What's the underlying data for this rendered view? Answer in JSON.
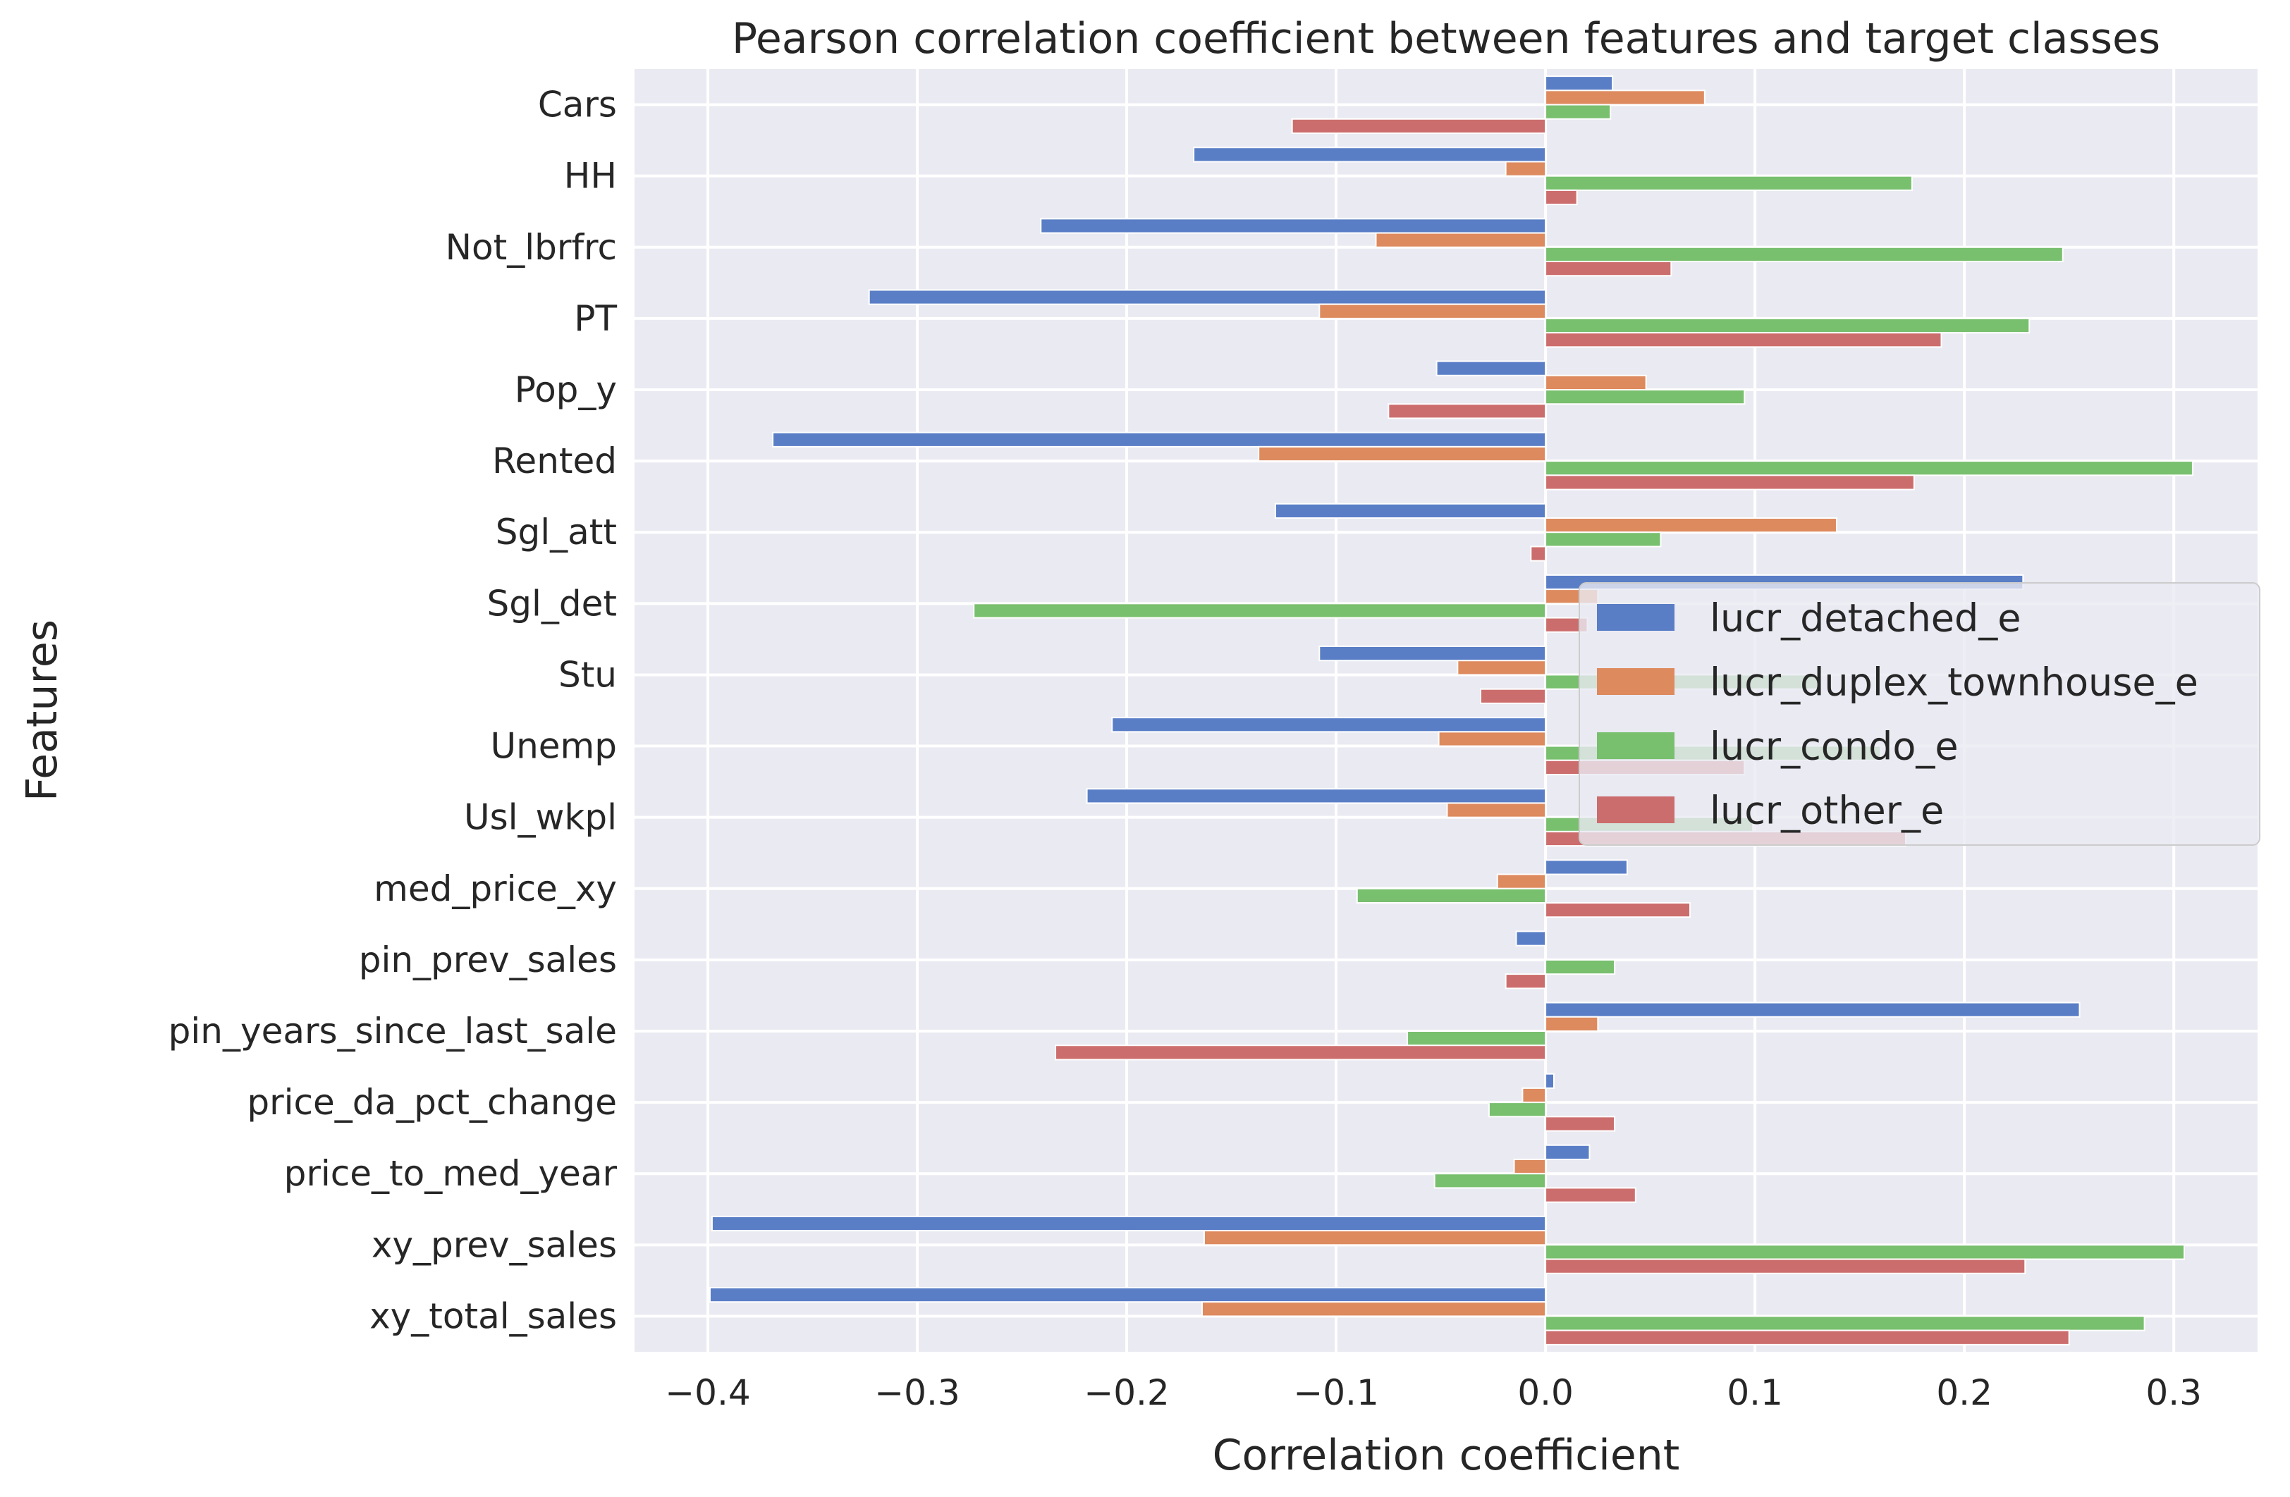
{
  "chart_data": {
    "type": "bar",
    "orientation": "horizontal",
    "title": "Pearson correlation coefficient between features and target classes",
    "xlabel": "Correlation coefficient",
    "ylabel": "Features",
    "xlim": [
      -0.435,
      0.34
    ],
    "xticks": [
      -0.4,
      -0.3,
      -0.2,
      -0.1,
      0.0,
      0.1,
      0.2,
      0.3
    ],
    "xtick_labels": [
      "−0.4",
      "−0.3",
      "−0.2",
      "−0.1",
      "0.0",
      "0.1",
      "0.2",
      "0.3"
    ],
    "grid": true,
    "legend_position": "center-right",
    "categories": [
      "Cars",
      "HH",
      "Not_lbrfrc",
      "PT",
      "Pop_y",
      "Rented",
      "Sgl_att",
      "Sgl_det",
      "Stu",
      "Unemp",
      "Usl_wkpl",
      "med_price_xy",
      "pin_prev_sales",
      "pin_years_since_last_sale",
      "price_da_pct_change",
      "price_to_med_year",
      "xy_prev_sales",
      "xy_total_sales"
    ],
    "series": [
      {
        "name": "lucr_detached_e",
        "color": "#5a7ec6",
        "values": [
          0.032,
          -0.168,
          -0.241,
          -0.323,
          -0.052,
          -0.369,
          -0.129,
          0.228,
          -0.108,
          -0.207,
          -0.219,
          0.039,
          -0.014,
          0.255,
          0.004,
          0.021,
          -0.398,
          -0.399
        ]
      },
      {
        "name": "lucr_duplex_townhouse_e",
        "color": "#dd8a5e",
        "values": [
          0.076,
          -0.019,
          -0.081,
          -0.108,
          0.048,
          -0.137,
          0.139,
          0.025,
          -0.042,
          -0.051,
          -0.047,
          -0.023,
          0.0,
          0.025,
          -0.011,
          -0.015,
          -0.163,
          -0.164
        ]
      },
      {
        "name": "lucr_condo_e",
        "color": "#78bf6e",
        "values": [
          0.031,
          0.175,
          0.247,
          0.231,
          0.095,
          0.309,
          0.055,
          -0.273,
          0.13,
          0.16,
          0.099,
          -0.09,
          0.033,
          -0.066,
          -0.027,
          -0.053,
          0.305,
          0.286
        ]
      },
      {
        "name": "lucr_other_e",
        "color": "#cc6d6d",
        "values": [
          -0.121,
          0.015,
          0.06,
          0.189,
          -0.075,
          0.176,
          -0.007,
          0.02,
          -0.031,
          0.095,
          0.172,
          0.069,
          -0.019,
          -0.234,
          0.033,
          0.043,
          0.229,
          0.25
        ]
      }
    ]
  }
}
